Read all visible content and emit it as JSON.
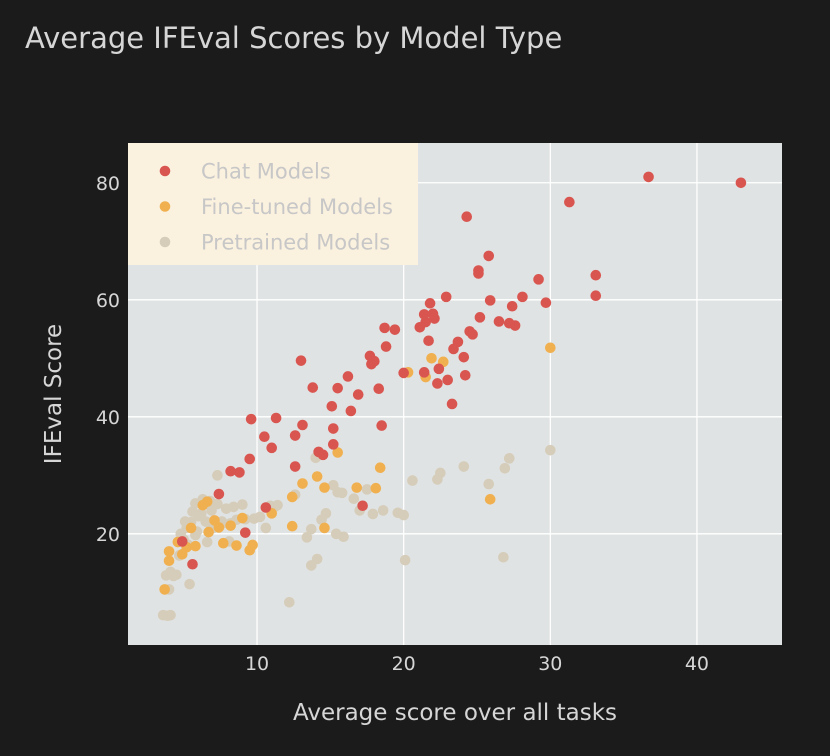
{
  "chart_data": {
    "type": "scatter",
    "title": "Average IFEval Scores by Model Type",
    "xlabel": "Average score over all tasks",
    "ylabel": "IFEval Score",
    "xlim": [
      1.2,
      45.8
    ],
    "ylim": [
      1.0,
      86.8
    ],
    "xticks": [
      10,
      20,
      30,
      40
    ],
    "yticks": [
      20,
      40,
      60,
      80
    ],
    "grid": true,
    "legend_position": "top-left",
    "series": [
      {
        "name": "Chat Models",
        "color": "#d95550",
        "points": [
          [
            43.0,
            80.0
          ],
          [
            36.7,
            81.0
          ],
          [
            31.3,
            76.7
          ],
          [
            33.1,
            64.2
          ],
          [
            33.1,
            60.7
          ],
          [
            29.2,
            63.5
          ],
          [
            29.7,
            59.5
          ],
          [
            28.1,
            60.5
          ],
          [
            27.4,
            58.9
          ],
          [
            27.6,
            55.6
          ],
          [
            27.2,
            56.0
          ],
          [
            26.5,
            56.3
          ],
          [
            25.8,
            67.5
          ],
          [
            25.9,
            59.9
          ],
          [
            25.2,
            57.0
          ],
          [
            25.1,
            65.0
          ],
          [
            25.1,
            64.5
          ],
          [
            24.3,
            74.2
          ],
          [
            24.5,
            54.6
          ],
          [
            24.7,
            54.1
          ],
          [
            24.1,
            50.2
          ],
          [
            24.2,
            47.1
          ],
          [
            23.7,
            52.8
          ],
          [
            23.4,
            51.6
          ],
          [
            23.3,
            42.2
          ],
          [
            22.9,
            60.5
          ],
          [
            23.0,
            46.3
          ],
          [
            22.4,
            48.2
          ],
          [
            22.3,
            45.7
          ],
          [
            22.1,
            56.8
          ],
          [
            22.0,
            57.6
          ],
          [
            21.8,
            59.4
          ],
          [
            21.7,
            53.0
          ],
          [
            21.5,
            56.2
          ],
          [
            21.4,
            57.5
          ],
          [
            21.1,
            55.3
          ],
          [
            21.4,
            47.6
          ],
          [
            20.0,
            47.5
          ],
          [
            19.4,
            54.9
          ],
          [
            18.7,
            55.2
          ],
          [
            18.8,
            52.0
          ],
          [
            18.3,
            44.8
          ],
          [
            18.5,
            38.5
          ],
          [
            17.8,
            49.0
          ],
          [
            17.7,
            50.4
          ],
          [
            18.0,
            49.5
          ],
          [
            16.9,
            43.8
          ],
          [
            16.2,
            46.9
          ],
          [
            16.4,
            41.0
          ],
          [
            15.5,
            44.9
          ],
          [
            15.1,
            41.8
          ],
          [
            15.2,
            38.0
          ],
          [
            15.2,
            35.3
          ],
          [
            14.2,
            34.0
          ],
          [
            14.5,
            33.5
          ],
          [
            13.8,
            45.0
          ],
          [
            13.0,
            49.6
          ],
          [
            13.1,
            38.6
          ],
          [
            12.6,
            36.8
          ],
          [
            12.6,
            31.5
          ],
          [
            11.3,
            39.8
          ],
          [
            11.0,
            34.7
          ],
          [
            10.5,
            36.6
          ],
          [
            10.6,
            24.5
          ],
          [
            9.6,
            39.6
          ],
          [
            9.5,
            32.8
          ],
          [
            9.2,
            20.2
          ],
          [
            8.8,
            30.5
          ],
          [
            8.2,
            30.7
          ],
          [
            7.4,
            26.8
          ],
          [
            5.6,
            14.8
          ],
          [
            4.9,
            18.7
          ],
          [
            17.2,
            24.8
          ]
        ]
      },
      {
        "name": "Fine-tuned Models",
        "color": "#f0b050",
        "points": [
          [
            30.0,
            51.8
          ],
          [
            25.9,
            25.9
          ],
          [
            20.3,
            47.6
          ],
          [
            21.9,
            50.0
          ],
          [
            22.7,
            49.4
          ],
          [
            21.5,
            46.8
          ],
          [
            18.4,
            31.3
          ],
          [
            18.1,
            27.8
          ],
          [
            16.8,
            27.9
          ],
          [
            15.5,
            33.9
          ],
          [
            14.1,
            29.8
          ],
          [
            14.6,
            27.9
          ],
          [
            13.1,
            28.6
          ],
          [
            14.6,
            21.0
          ],
          [
            12.4,
            21.3
          ],
          [
            11.0,
            23.5
          ],
          [
            12.4,
            26.3
          ],
          [
            9.5,
            17.2
          ],
          [
            9.7,
            18.1
          ],
          [
            9.0,
            22.7
          ],
          [
            8.6,
            18.0
          ],
          [
            8.2,
            21.4
          ],
          [
            7.7,
            18.4
          ],
          [
            7.4,
            21.1
          ],
          [
            7.1,
            22.3
          ],
          [
            6.7,
            20.3
          ],
          [
            6.6,
            25.5
          ],
          [
            6.3,
            24.9
          ],
          [
            5.8,
            17.9
          ],
          [
            5.5,
            21.0
          ],
          [
            5.2,
            17.7
          ],
          [
            4.9,
            16.5
          ],
          [
            4.6,
            18.6
          ],
          [
            4.0,
            17.0
          ],
          [
            4.0,
            15.4
          ],
          [
            3.7,
            10.5
          ]
        ]
      },
      {
        "name": "Pretrained Models",
        "color": "#d5ccb9",
        "points": [
          [
            30.0,
            34.3
          ],
          [
            27.2,
            32.9
          ],
          [
            26.9,
            31.2
          ],
          [
            25.8,
            28.5
          ],
          [
            24.1,
            31.5
          ],
          [
            22.5,
            30.4
          ],
          [
            22.3,
            29.3
          ],
          [
            20.6,
            29.1
          ],
          [
            19.6,
            23.6
          ],
          [
            20.0,
            23.2
          ],
          [
            20.1,
            15.5
          ],
          [
            26.8,
            16.0
          ],
          [
            18.6,
            24.0
          ],
          [
            17.9,
            23.4
          ],
          [
            17.5,
            27.6
          ],
          [
            17.0,
            24.0
          ],
          [
            16.6,
            26.0
          ],
          [
            15.8,
            27.0
          ],
          [
            15.9,
            19.5
          ],
          [
            15.5,
            27.1
          ],
          [
            15.2,
            28.3
          ],
          [
            15.4,
            20.0
          ],
          [
            14.7,
            23.5
          ],
          [
            14.4,
            22.4
          ],
          [
            14.0,
            33.0
          ],
          [
            14.1,
            15.7
          ],
          [
            13.7,
            20.8
          ],
          [
            13.7,
            14.6
          ],
          [
            13.4,
            19.4
          ],
          [
            12.6,
            26.7
          ],
          [
            12.2,
            8.3
          ],
          [
            11.4,
            24.9
          ],
          [
            11.2,
            24.6
          ],
          [
            10.6,
            21.0
          ],
          [
            10.9,
            24.8
          ],
          [
            10.2,
            22.9
          ],
          [
            9.8,
            22.6
          ],
          [
            9.0,
            25.0
          ],
          [
            9.2,
            22.5
          ],
          [
            8.6,
            22.4
          ],
          [
            8.2,
            21.8
          ],
          [
            8.4,
            24.6
          ],
          [
            8.1,
            18.7
          ],
          [
            7.9,
            24.3
          ],
          [
            7.6,
            21.7
          ],
          [
            7.6,
            22.1
          ],
          [
            7.3,
            30.0
          ],
          [
            7.3,
            25.1
          ],
          [
            7.0,
            21.0
          ],
          [
            6.8,
            25.6
          ],
          [
            6.9,
            24.0
          ],
          [
            6.7,
            21.9
          ],
          [
            6.6,
            18.6
          ],
          [
            6.5,
            22.1
          ],
          [
            6.3,
            25.9
          ],
          [
            6.2,
            23.5
          ],
          [
            6.0,
            23.0
          ],
          [
            5.9,
            20.4
          ],
          [
            5.8,
            25.2
          ],
          [
            5.8,
            19.8
          ],
          [
            5.6,
            23.8
          ],
          [
            5.5,
            22.0
          ],
          [
            5.4,
            11.4
          ],
          [
            5.3,
            18.1
          ],
          [
            5.2,
            21.0
          ],
          [
            5.1,
            22.1
          ],
          [
            5.0,
            19.0
          ],
          [
            4.8,
            20.0
          ],
          [
            4.7,
            16.3
          ],
          [
            4.5,
            13.0
          ],
          [
            4.3,
            12.8
          ],
          [
            4.1,
            13.5
          ],
          [
            4.0,
            10.5
          ],
          [
            4.1,
            6.1
          ],
          [
            3.9,
            6.0
          ],
          [
            3.6,
            6.1
          ],
          [
            3.8,
            12.9
          ]
        ]
      }
    ]
  }
}
